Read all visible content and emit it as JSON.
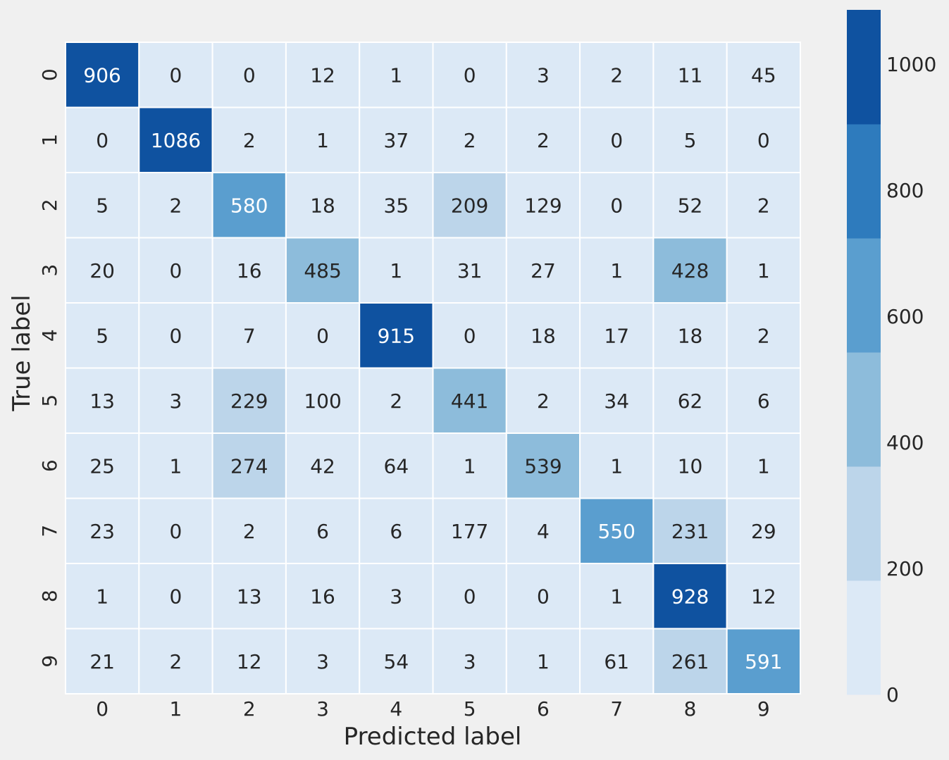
{
  "chart_data": {
    "type": "heatmap",
    "title": "",
    "xlabel": "Predicted label",
    "ylabel": "True label",
    "x_categories": [
      "0",
      "1",
      "2",
      "3",
      "4",
      "5",
      "6",
      "7",
      "8",
      "9"
    ],
    "y_categories": [
      "0",
      "1",
      "2",
      "3",
      "4",
      "5",
      "6",
      "7",
      "8",
      "9"
    ],
    "values": [
      [
        906,
        0,
        0,
        12,
        1,
        0,
        3,
        2,
        11,
        45
      ],
      [
        0,
        1086,
        2,
        1,
        37,
        2,
        2,
        0,
        5,
        0
      ],
      [
        5,
        2,
        580,
        18,
        35,
        209,
        129,
        0,
        52,
        2
      ],
      [
        20,
        0,
        16,
        485,
        1,
        31,
        27,
        1,
        428,
        1
      ],
      [
        5,
        0,
        7,
        0,
        915,
        0,
        18,
        17,
        18,
        2
      ],
      [
        13,
        3,
        229,
        100,
        2,
        441,
        2,
        34,
        62,
        6
      ],
      [
        25,
        1,
        274,
        42,
        64,
        1,
        539,
        1,
        10,
        1
      ],
      [
        23,
        0,
        2,
        6,
        6,
        177,
        4,
        550,
        231,
        29
      ],
      [
        1,
        0,
        13,
        16,
        3,
        0,
        0,
        1,
        928,
        12
      ],
      [
        21,
        2,
        12,
        3,
        54,
        3,
        1,
        61,
        261,
        591
      ]
    ],
    "colorbar": {
      "range": [
        0,
        1086
      ],
      "ticks": [
        0,
        200,
        400,
        600,
        800,
        1000
      ],
      "colors": [
        "#dce9f6",
        "#bcd5ea",
        "#8dbcdb",
        "#5a9ecf",
        "#2e7bbd",
        "#0f52a0"
      ]
    },
    "grid": false
  }
}
